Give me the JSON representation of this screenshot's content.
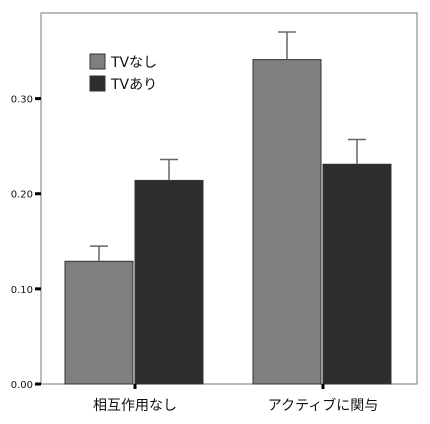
{
  "chart_data": {
    "type": "bar",
    "categories": [
      "相互作用なし",
      "アクティブに関与"
    ],
    "series": [
      {
        "name": "TVなし",
        "values": [
          0.129,
          0.341
        ],
        "error": [
          0.016,
          0.029
        ],
        "color": "#7f7f7f"
      },
      {
        "name": "TVあり",
        "values": [
          0.214,
          0.231
        ],
        "error": [
          0.022,
          0.026
        ],
        "color": "#2d2d2d"
      }
    ],
    "ylim": [
      0,
      0.39
    ],
    "yticks": [
      0.0,
      0.1,
      0.2,
      0.3
    ],
    "ytick_labels": [
      "0.00",
      "0.10",
      "0.20",
      "0.30"
    ],
    "grid": false,
    "legend": "top-left",
    "title": "",
    "xlabel": "",
    "ylabel": ""
  }
}
